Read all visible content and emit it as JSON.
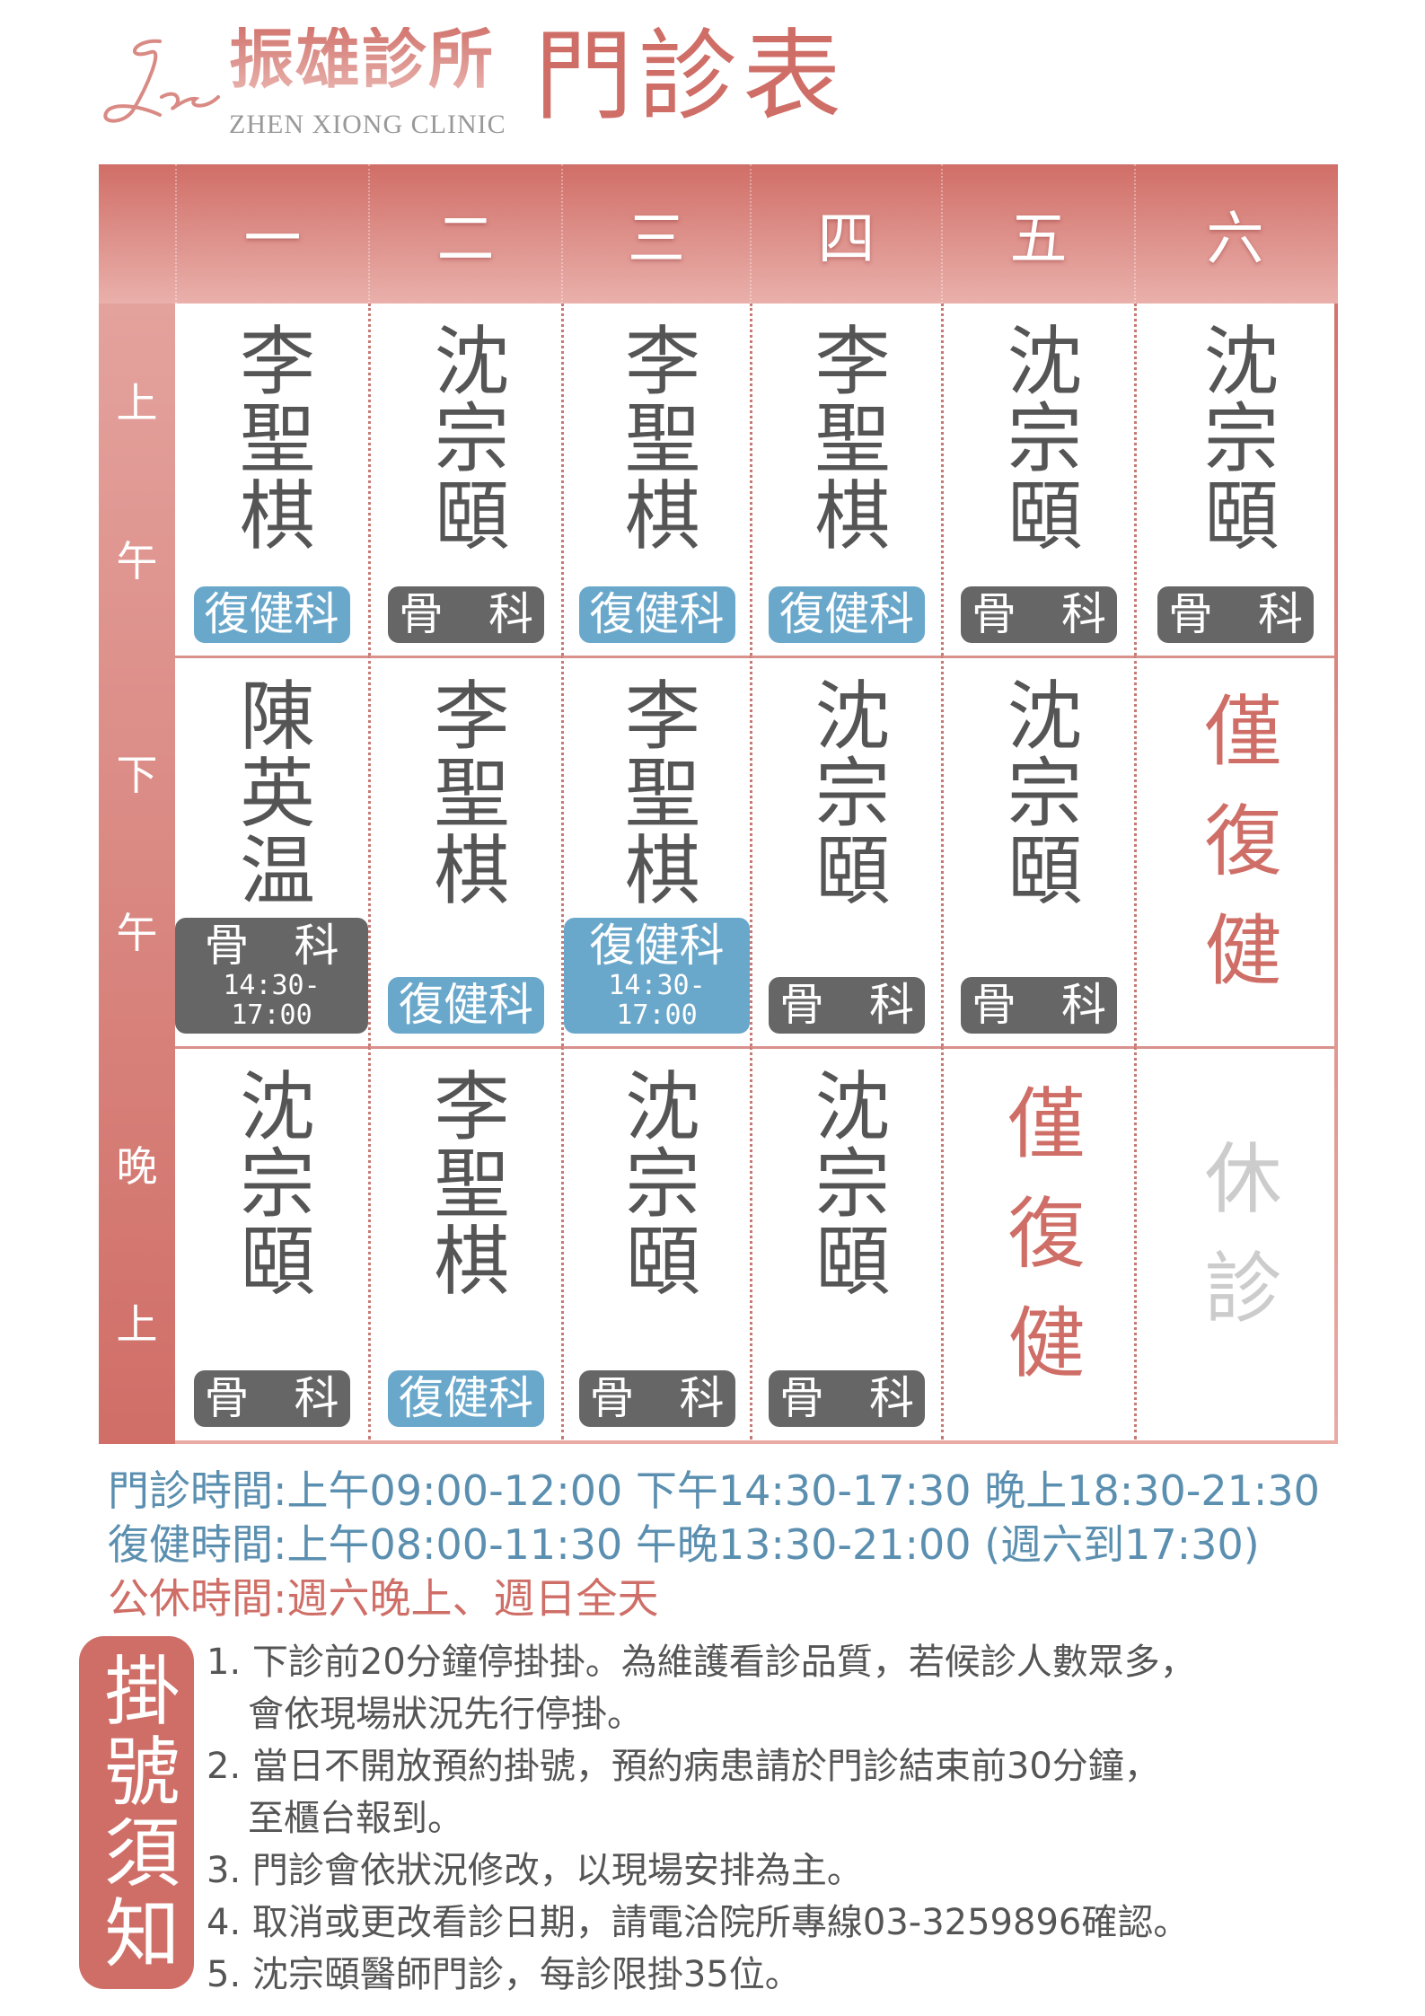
{
  "header": {
    "logo_monogram": "Zx",
    "clinic_name": "振雄診所",
    "clinic_name_en": "ZHEN XIONG CLINIC",
    "title": "門診表"
  },
  "colors": {
    "accent": "#cf6e67",
    "rehab": "#6aa8cb",
    "ortho": "#666666",
    "info_blue": "#5b8fb0"
  },
  "schedule": {
    "days": [
      "一",
      "二",
      "三",
      "四",
      "五",
      "六"
    ],
    "periods": [
      {
        "label": [
          "上",
          "午"
        ],
        "cells": [
          {
            "name": "李聖棋",
            "dept": "復健科",
            "dept_type": "rehab"
          },
          {
            "name": "沈宗頤",
            "dept": "骨　科",
            "dept_type": "ortho"
          },
          {
            "name": "李聖棋",
            "dept": "復健科",
            "dept_type": "rehab"
          },
          {
            "name": "李聖棋",
            "dept": "復健科",
            "dept_type": "rehab"
          },
          {
            "name": "沈宗頤",
            "dept": "骨　科",
            "dept_type": "ortho"
          },
          {
            "name": "沈宗頤",
            "dept": "骨　科",
            "dept_type": "ortho"
          }
        ]
      },
      {
        "label": [
          "下",
          "午"
        ],
        "cells": [
          {
            "name": "陳英温",
            "dept": "骨　科",
            "dept_type": "ortho",
            "hours": "14:30-17:00"
          },
          {
            "name": "李聖棋",
            "dept": "復健科",
            "dept_type": "rehab"
          },
          {
            "name": "李聖棋",
            "dept": "復健科",
            "dept_type": "rehab",
            "hours": "14:30-17:00"
          },
          {
            "name": "沈宗頤",
            "dept": "骨　科",
            "dept_type": "ortho"
          },
          {
            "name": "沈宗頤",
            "dept": "骨　科",
            "dept_type": "ortho"
          },
          {
            "note": "僅復健",
            "color": "#cf6e67"
          }
        ]
      },
      {
        "label": [
          "晚",
          "上"
        ],
        "cells": [
          {
            "name": "沈宗頤",
            "dept": "骨　科",
            "dept_type": "ortho"
          },
          {
            "name": "李聖棋",
            "dept": "復健科",
            "dept_type": "rehab"
          },
          {
            "name": "沈宗頤",
            "dept": "骨　科",
            "dept_type": "ortho"
          },
          {
            "name": "沈宗頤",
            "dept": "骨　科",
            "dept_type": "ortho"
          },
          {
            "note": "僅復健",
            "color": "#cf6e67"
          },
          {
            "note": "休診",
            "color": "#cccccc"
          }
        ]
      }
    ]
  },
  "info": {
    "clinic_hours": "門診時間:上午09:00-12:00 下午14:30-17:30 晚上18:30-21:30",
    "rehab_hours": "復健時間:上午08:00-11:30 午晚13:30-21:00 (週六到17:30)",
    "closed": "公休時間:週六晚上、週日全天"
  },
  "notice": {
    "title": "掛號須知",
    "items": [
      {
        "line1": "1. 下診前20分鐘停掛掛。為維護看診品質，若候診人數眾多，",
        "line2": "會依現場狀況先行停掛。"
      },
      {
        "line1": "2. 當日不開放預約掛號，預約病患請於門診結束前30分鐘，",
        "line2": "至櫃台報到。"
      },
      {
        "line1": "3. 門診會依狀況修改，以現場安排為主。"
      },
      {
        "line1": "4. 取消或更改看診日期，請電洽院所專線03-3259896確認。"
      },
      {
        "line1": "5. 沈宗頤醫師門診，每診限掛35位。"
      }
    ]
  }
}
